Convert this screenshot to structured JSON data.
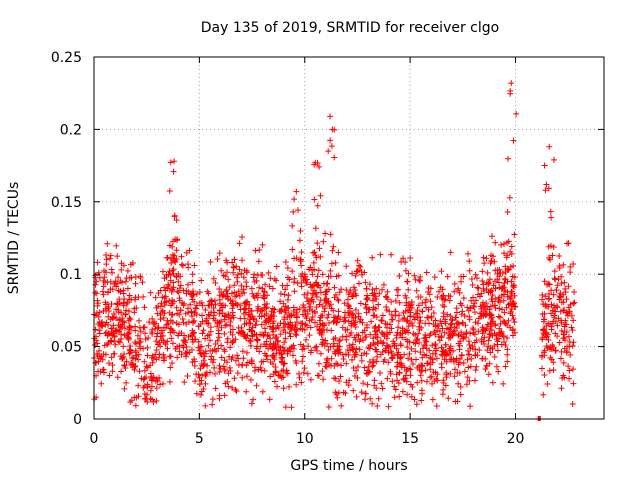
{
  "chart_data": {
    "type": "scatter",
    "title": "Day 135 of 2019, SRMTID for receiver clgo",
    "xlabel": "GPS time / hours",
    "ylabel": "SRMTID / TECUs",
    "xlim": [
      0,
      24.2
    ],
    "ylim": [
      0,
      0.25
    ],
    "xticks": [
      0,
      5,
      10,
      15,
      20
    ],
    "xtick_labels": [
      "0",
      "5",
      "10",
      "15",
      "20"
    ],
    "yticks": [
      0,
      0.05,
      0.1,
      0.15,
      0.2,
      0.25
    ],
    "ytick_labels": [
      "0",
      "0.05",
      "0.1",
      "0.15",
      "0.2",
      "0.25"
    ],
    "grid": true,
    "marker": "+",
    "color": "#ff0000",
    "series": [
      {
        "name": "SRMTID",
        "description": "dense scatter, ~3000 points sampled between 0 and 22.8 h; gap 20.2-21.2 h",
        "trend_x": [
          0,
          1,
          2,
          2.5,
          3,
          3.5,
          4,
          5,
          6,
          7,
          8,
          9,
          10,
          10.5,
          11,
          12,
          13,
          14,
          15,
          16,
          17,
          18,
          19,
          19.8,
          21.3,
          22,
          22.8
        ],
        "trend_y": [
          0.06,
          0.07,
          0.055,
          0.04,
          0.05,
          0.075,
          0.08,
          0.055,
          0.065,
          0.07,
          0.065,
          0.06,
          0.075,
          0.08,
          0.065,
          0.06,
          0.055,
          0.06,
          0.06,
          0.055,
          0.055,
          0.065,
          0.075,
          0.09,
          0.065,
          0.07,
          0.065
        ],
        "peaks": [
          {
            "x": 3.8,
            "y": 0.178
          },
          {
            "x": 9.6,
            "y": 0.157
          },
          {
            "x": 10.5,
            "y": 0.177
          },
          {
            "x": 11.2,
            "y": 0.209
          },
          {
            "x": 19.8,
            "y": 0.232
          },
          {
            "x": 21.6,
            "y": 0.188
          }
        ],
        "outlier_segment": {
          "x_start": 21.05,
          "x_end": 21.2,
          "y": 0
        }
      }
    ]
  }
}
